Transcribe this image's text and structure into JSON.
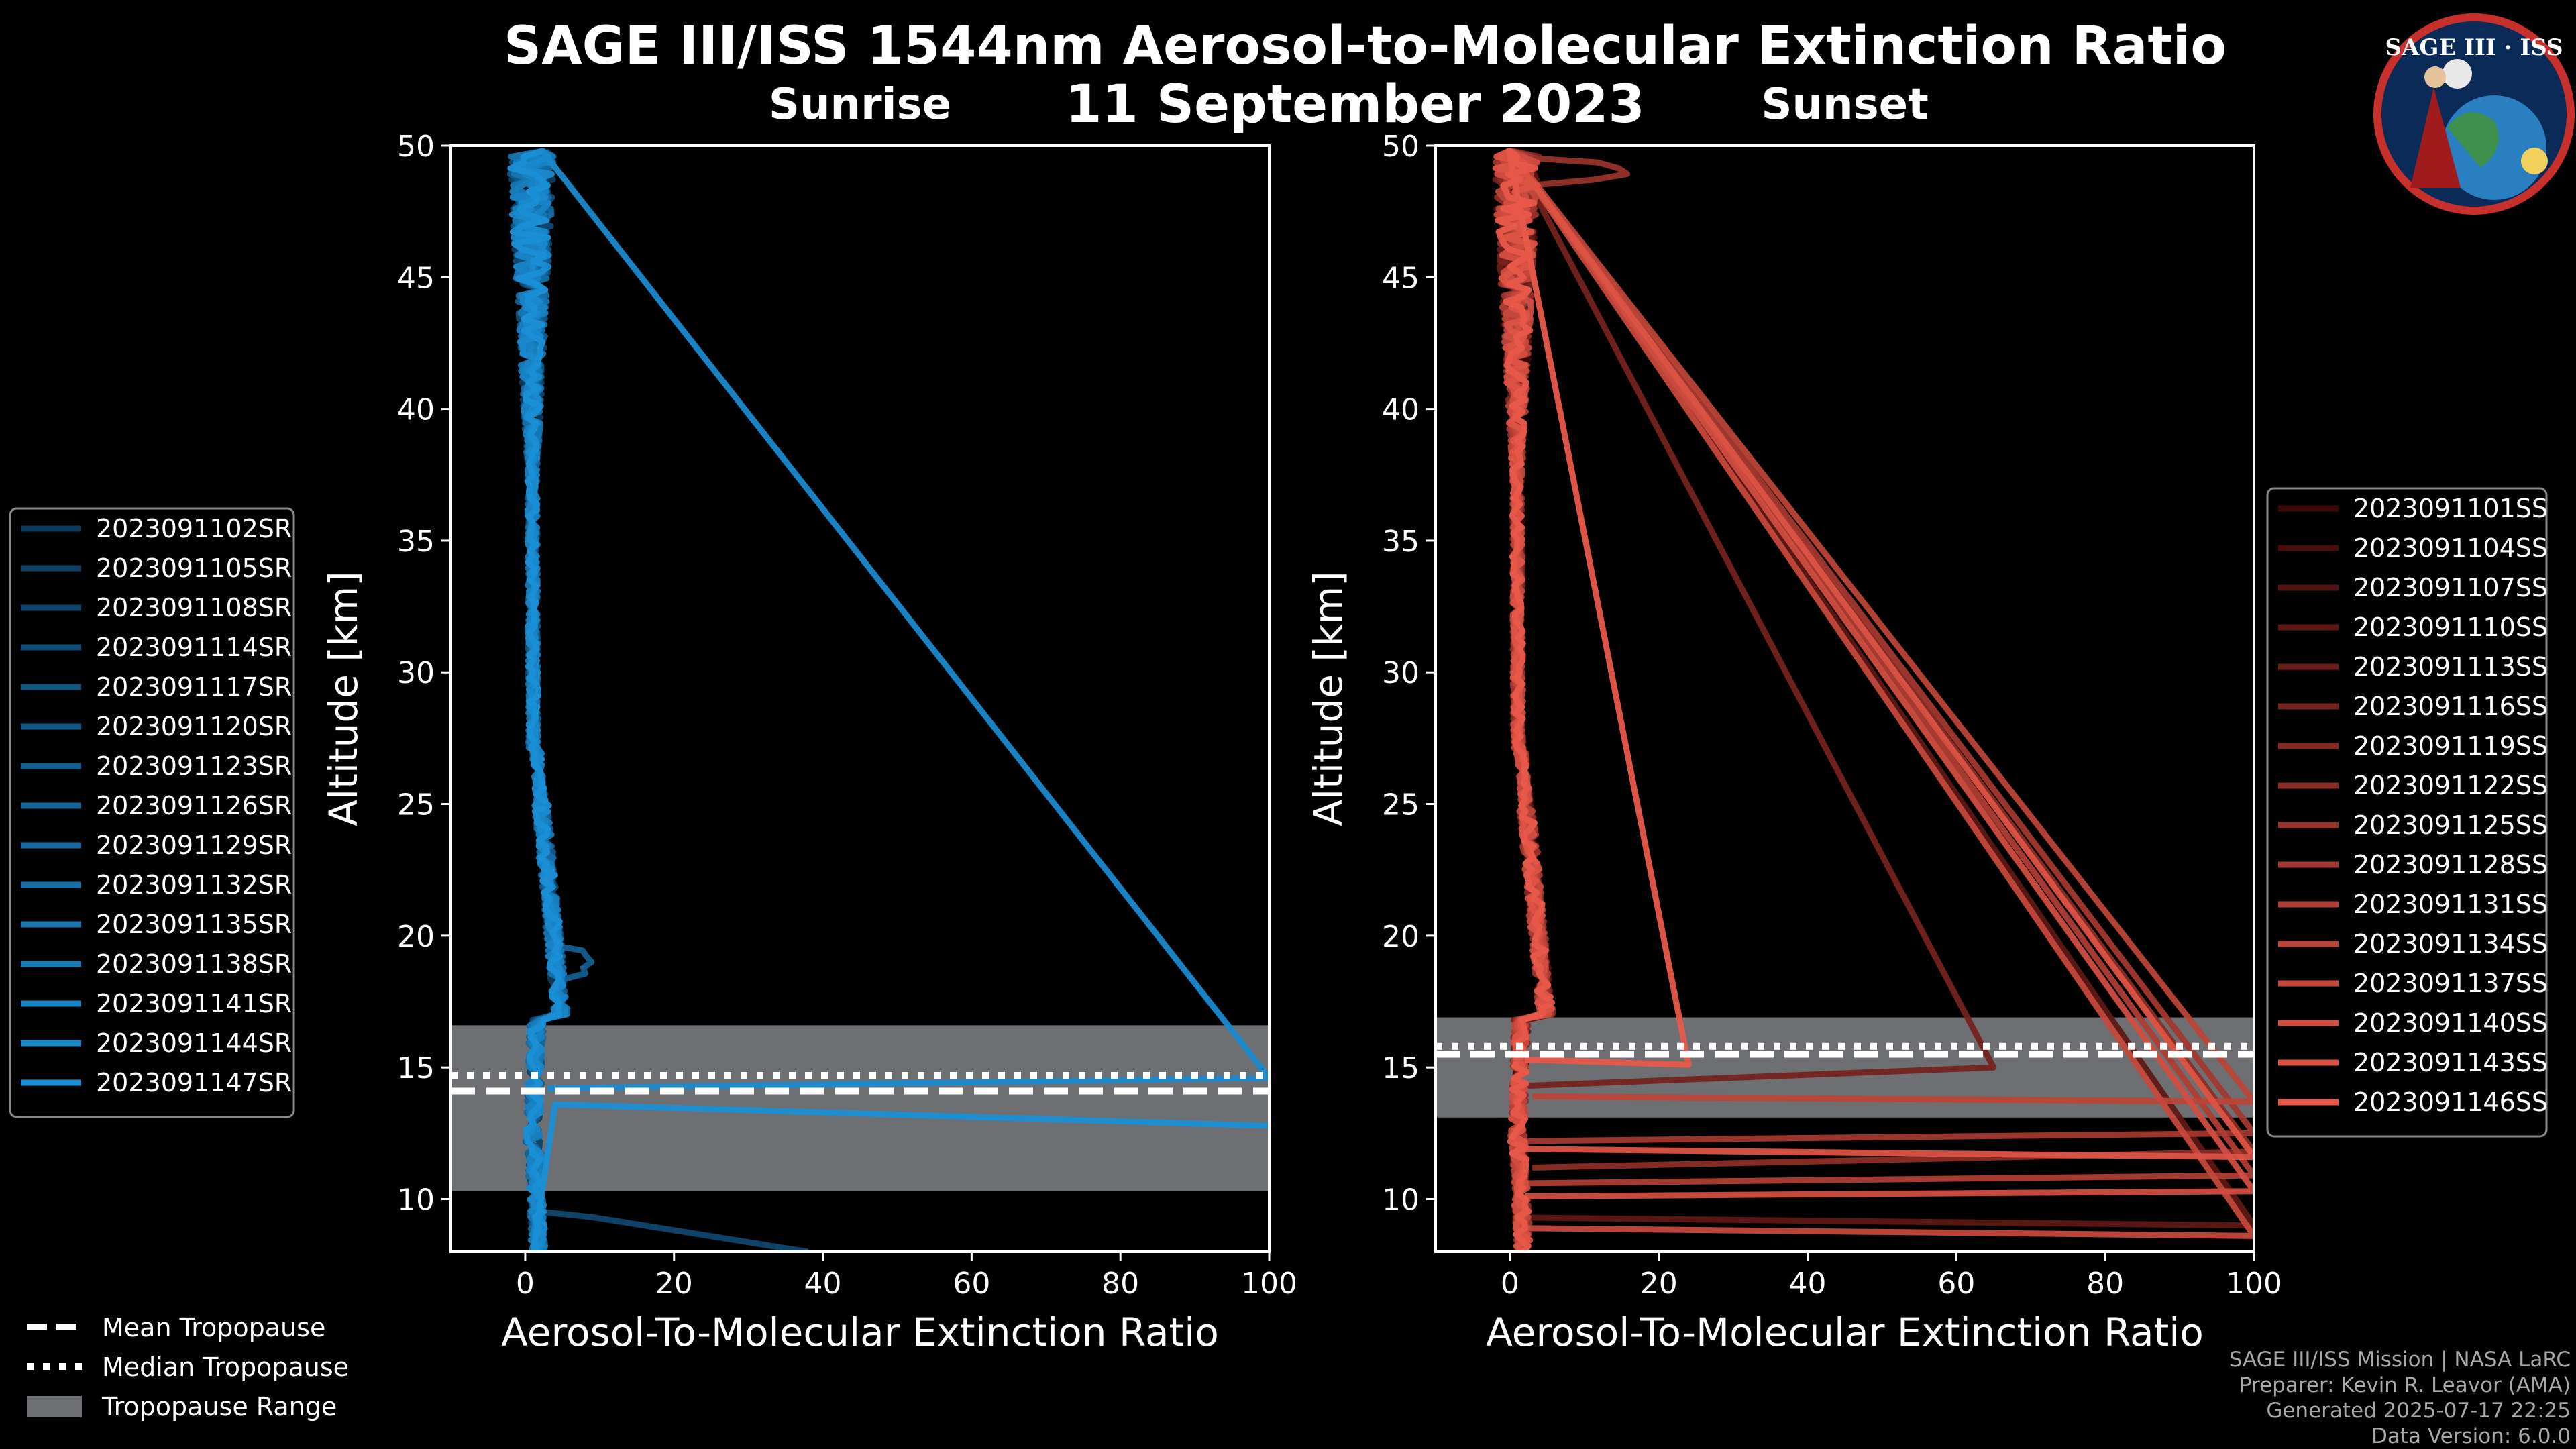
{
  "chart_data": {
    "type": "line",
    "title": "SAGE III/ISS 1544nm Aerosol-to-Molecular Extinction Ratio",
    "date": "11 September 2023",
    "logo_text": "SAGE III · ISS",
    "credits": [
      "SAGE III/ISS Mission | NASA LaRC",
      "Preparer: Kevin R. Leavor (AMA)",
      "Generated 2025-07-17 22:25",
      "Data Version: 6.0.0"
    ],
    "common_legend": {
      "mean": "Mean Tropopause",
      "median": "Median Tropopause",
      "range": "Tropopause Range"
    },
    "panels": [
      {
        "subtitle": "Sunrise",
        "xlabel": "Aerosol-To-Molecular Extinction Ratio",
        "ylabel": "Altitude [km]",
        "xlim": [
          -10,
          100
        ],
        "ylim": [
          8,
          50
        ],
        "xticks": [
          0,
          20,
          40,
          60,
          80,
          100
        ],
        "yticks": [
          10,
          15,
          20,
          25,
          30,
          35,
          40,
          45,
          50
        ],
        "tropopause": {
          "mean": 14.1,
          "median": 14.7,
          "range": [
            10.3,
            16.6
          ]
        },
        "series_color_dark": "#0d3a5c",
        "series_color_light": "#1a8fd6",
        "series": [
          "2023091102SR",
          "2023091105SR",
          "2023091108SR",
          "2023091114SR",
          "2023091117SR",
          "2023091120SR",
          "2023091123SR",
          "2023091126SR",
          "2023091129SR",
          "2023091132SR",
          "2023091135SR",
          "2023091138SR",
          "2023091141SR",
          "2023091144SR",
          "2023091147SR"
        ]
      },
      {
        "subtitle": "Sunset",
        "xlabel": "Aerosol-To-Molecular Extinction Ratio",
        "ylabel": "Altitude [km]",
        "xlim": [
          -10,
          100
        ],
        "ylim": [
          8,
          50
        ],
        "xticks": [
          0,
          20,
          40,
          60,
          80,
          100
        ],
        "yticks": [
          10,
          15,
          20,
          25,
          30,
          35,
          40,
          45,
          50
        ],
        "tropopause": {
          "mean": 15.5,
          "median": 15.8,
          "range": [
            13.1,
            16.9
          ]
        },
        "series_color_dark": "#3a0806",
        "series_color_light": "#e8584a",
        "series": [
          "2023091101SS",
          "2023091104SS",
          "2023091107SS",
          "2023091110SS",
          "2023091113SS",
          "2023091116SS",
          "2023091119SS",
          "2023091122SS",
          "2023091125SS",
          "2023091128SS",
          "2023091131SS",
          "2023091134SS",
          "2023091137SS",
          "2023091140SS",
          "2023091143SS",
          "2023091146SS"
        ]
      }
    ]
  }
}
